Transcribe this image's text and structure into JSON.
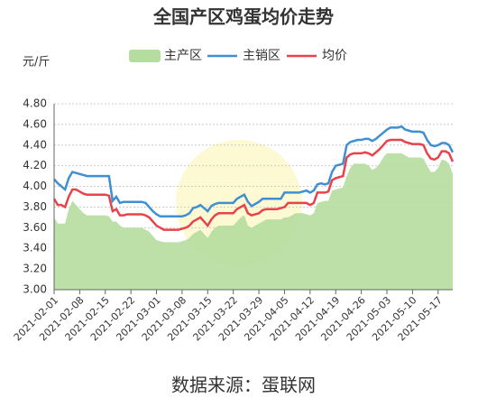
{
  "chart_data": {
    "type": "line",
    "title": "全国产区鸡蛋均价走势",
    "y_axis_label": "元/斤",
    "source": "数据来源：蛋联网",
    "categories": [
      "2021-02-01",
      null,
      null,
      null,
      null,
      null,
      null,
      "2021-02-08",
      null,
      null,
      null,
      null,
      null,
      null,
      "2021-02-15",
      null,
      null,
      null,
      null,
      null,
      null,
      "2021-02-22",
      null,
      null,
      null,
      null,
      null,
      null,
      "2021-03-01",
      null,
      null,
      null,
      null,
      null,
      null,
      "2021-03-08",
      null,
      null,
      null,
      null,
      null,
      null,
      "2021-03-15",
      null,
      null,
      null,
      null,
      null,
      null,
      "2021-03-22",
      null,
      null,
      null,
      null,
      null,
      null,
      "2021-03-29",
      null,
      null,
      null,
      null,
      null,
      null,
      "2021-04-05",
      null,
      null,
      null,
      null,
      null,
      null,
      "2021-04-12",
      null,
      null,
      null,
      null,
      null,
      null,
      "2021-04-19",
      null,
      null,
      null,
      null,
      null,
      null,
      "2021-04-26",
      null,
      null,
      null,
      null,
      null,
      null,
      "2021-05-03",
      null,
      null,
      null,
      null,
      null,
      null,
      "2021-05-10",
      null,
      null,
      null,
      null,
      null,
      null,
      "2021-05-17",
      null,
      null,
      null,
      null
    ],
    "series": [
      {
        "name": "主产区",
        "style": "area",
        "color": "#b5dd9f",
        "values": [
          3.7,
          3.64,
          3.64,
          3.64,
          3.78,
          3.86,
          3.82,
          3.78,
          3.74,
          3.72,
          3.72,
          3.72,
          3.72,
          3.72,
          3.72,
          3.71,
          3.66,
          3.66,
          3.62,
          3.6,
          3.6,
          3.6,
          3.6,
          3.6,
          3.6,
          3.58,
          3.56,
          3.52,
          3.48,
          3.47,
          3.46,
          3.46,
          3.46,
          3.46,
          3.46,
          3.47,
          3.48,
          3.5,
          3.54,
          3.56,
          3.58,
          3.54,
          3.5,
          3.56,
          3.6,
          3.62,
          3.62,
          3.62,
          3.62,
          3.62,
          3.66,
          3.7,
          3.72,
          3.62,
          3.6,
          3.62,
          3.64,
          3.66,
          3.68,
          3.68,
          3.68,
          3.68,
          3.68,
          3.7,
          3.7,
          3.72,
          3.74,
          3.74,
          3.74,
          3.73,
          3.72,
          3.74,
          3.84,
          3.85,
          3.86,
          3.86,
          3.96,
          3.97,
          3.98,
          3.99,
          4.1,
          4.18,
          4.22,
          4.22,
          4.22,
          4.22,
          4.2,
          4.16,
          4.18,
          4.22,
          4.28,
          4.32,
          4.32,
          4.32,
          4.32,
          4.32,
          4.3,
          4.28,
          4.28,
          4.28,
          4.28,
          4.27,
          4.2,
          4.14,
          4.14,
          4.18,
          4.26,
          4.25,
          4.22,
          4.12
        ]
      },
      {
        "name": "主销区",
        "style": "line",
        "color": "#3f8fd2",
        "values": [
          4.07,
          4.03,
          4.0,
          3.97,
          4.08,
          4.14,
          4.13,
          4.12,
          4.11,
          4.1,
          4.1,
          4.1,
          4.1,
          4.1,
          4.1,
          4.1,
          3.86,
          3.9,
          3.84,
          3.85,
          3.85,
          3.85,
          3.85,
          3.85,
          3.85,
          3.84,
          3.8,
          3.76,
          3.73,
          3.71,
          3.71,
          3.71,
          3.71,
          3.71,
          3.71,
          3.71,
          3.72,
          3.74,
          3.79,
          3.8,
          3.82,
          3.79,
          3.76,
          3.81,
          3.83,
          3.84,
          3.84,
          3.84,
          3.84,
          3.84,
          3.88,
          3.9,
          3.92,
          3.85,
          3.81,
          3.83,
          3.85,
          3.88,
          3.88,
          3.88,
          3.88,
          3.88,
          3.88,
          3.94,
          3.94,
          3.94,
          3.94,
          3.94,
          3.95,
          3.96,
          3.94,
          3.96,
          4.02,
          4.03,
          4.02,
          4.03,
          4.14,
          4.2,
          4.21,
          4.22,
          4.4,
          4.43,
          4.44,
          4.45,
          4.45,
          4.46,
          4.46,
          4.44,
          4.46,
          4.49,
          4.52,
          4.55,
          4.57,
          4.57,
          4.57,
          4.58,
          4.55,
          4.54,
          4.53,
          4.53,
          4.53,
          4.52,
          4.45,
          4.4,
          4.39,
          4.4,
          4.42,
          4.42,
          4.4,
          4.33
        ]
      },
      {
        "name": "均价",
        "style": "line",
        "color": "#e8434a",
        "values": [
          3.88,
          3.82,
          3.82,
          3.8,
          3.9,
          3.97,
          3.97,
          3.95,
          3.93,
          3.92,
          3.92,
          3.92,
          3.92,
          3.92,
          3.92,
          3.91,
          3.76,
          3.78,
          3.72,
          3.72,
          3.73,
          3.73,
          3.73,
          3.73,
          3.73,
          3.72,
          3.7,
          3.66,
          3.62,
          3.6,
          3.58,
          3.58,
          3.58,
          3.58,
          3.58,
          3.59,
          3.6,
          3.62,
          3.66,
          3.68,
          3.7,
          3.66,
          3.62,
          3.68,
          3.72,
          3.74,
          3.74,
          3.74,
          3.74,
          3.74,
          3.78,
          3.8,
          3.82,
          3.74,
          3.72,
          3.73,
          3.74,
          3.77,
          3.78,
          3.78,
          3.78,
          3.78,
          3.79,
          3.8,
          3.84,
          3.84,
          3.84,
          3.84,
          3.84,
          3.84,
          3.82,
          3.84,
          3.94,
          3.94,
          3.94,
          3.95,
          4.06,
          4.08,
          4.09,
          4.1,
          4.28,
          4.31,
          4.32,
          4.32,
          4.32,
          4.33,
          4.32,
          4.3,
          4.33,
          4.36,
          4.4,
          4.44,
          4.45,
          4.45,
          4.45,
          4.45,
          4.43,
          4.42,
          4.41,
          4.41,
          4.41,
          4.4,
          4.32,
          4.27,
          4.26,
          4.28,
          4.34,
          4.34,
          4.32,
          4.24
        ]
      }
    ],
    "ylim": [
      3.0,
      4.8
    ],
    "yticks": [
      {
        "value": 3,
        "label": "3.00"
      },
      {
        "value": 3.2,
        "label": "3.20"
      },
      {
        "value": 3.4,
        "label": "3.40"
      },
      {
        "value": 3.6,
        "label": "3.60"
      },
      {
        "value": 3.8,
        "label": "3.80"
      },
      {
        "value": 4,
        "label": "4.00"
      },
      {
        "value": 4.2,
        "label": "4.20"
      },
      {
        "value": 4.4,
        "label": "4.40"
      },
      {
        "value": 4.6,
        "label": "4.60"
      },
      {
        "value": 4.8,
        "label": "4.80"
      }
    ],
    "grid": true
  }
}
